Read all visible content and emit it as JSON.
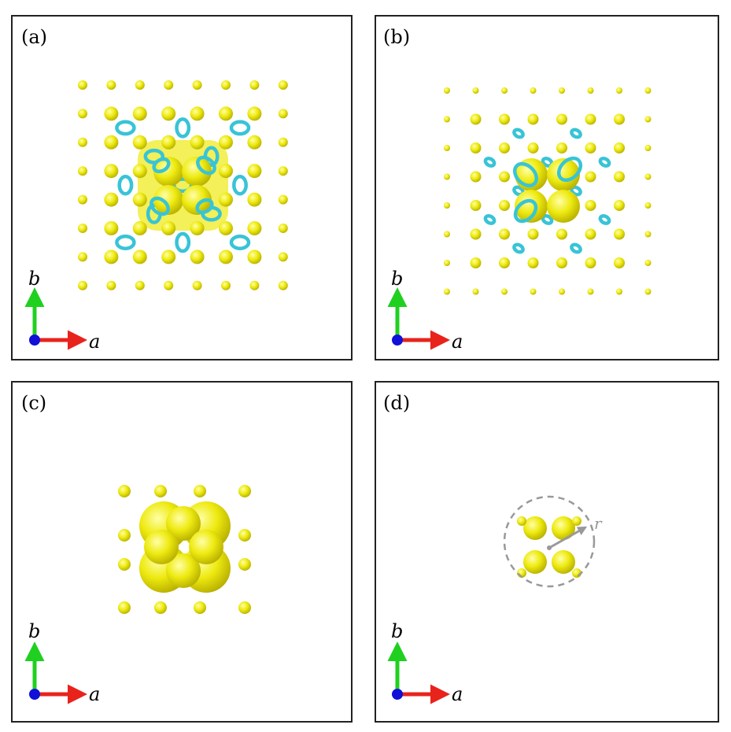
{
  "panels": [
    {
      "label": "(a)"
    },
    {
      "label": "(b)"
    },
    {
      "label": "(c)"
    },
    {
      "label": "(d)"
    }
  ],
  "axes": {
    "a": "a",
    "b": "b"
  },
  "radius_label": "r"
}
